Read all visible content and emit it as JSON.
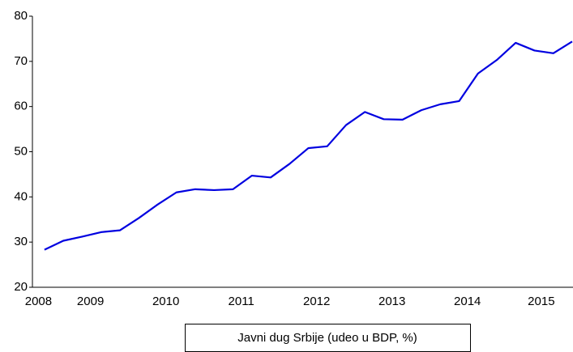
{
  "chart_data": {
    "type": "line",
    "x": [
      2008,
      2008.25,
      2008.5,
      2008.75,
      2009,
      2009.25,
      2009.5,
      2009.75,
      2010,
      2010.25,
      2010.5,
      2010.75,
      2011,
      2011.25,
      2011.5,
      2011.75,
      2012,
      2012.25,
      2012.5,
      2012.75,
      2013,
      2013.25,
      2013.5,
      2013.75,
      2014,
      2014.25,
      2014.5,
      2014.75,
      2015
    ],
    "series": [
      {
        "name": "Javni dug Srbije (udeo u BDP, %)",
        "color": "#0000e0",
        "values": [
          28.3,
          30.3,
          31.2,
          32.2,
          32.6,
          35.3,
          38.3,
          41.0,
          41.7,
          41.5,
          41.7,
          44.7,
          44.3,
          47.3,
          50.8,
          51.2,
          55.9,
          58.8,
          57.2,
          57.1,
          59.2,
          60.5,
          61.2,
          67.3,
          70.3,
          74.1,
          72.4,
          71.8,
          74.4
        ]
      }
    ],
    "xlim": [
      2007.84,
      2015
    ],
    "xticks": [
      {
        "value": 2007.92,
        "label": "2008"
      },
      {
        "value": 2008.61,
        "label": "2009"
      },
      {
        "value": 2009.61,
        "label": "2010"
      },
      {
        "value": 2010.61,
        "label": "2011"
      },
      {
        "value": 2011.61,
        "label": "2012"
      },
      {
        "value": 2012.61,
        "label": "2013"
      },
      {
        "value": 2013.61,
        "label": "2014"
      },
      {
        "value": 2014.59,
        "label": "2015"
      }
    ],
    "ylim": [
      20,
      80
    ],
    "yticks": [
      20,
      30,
      40,
      50,
      60,
      70,
      80
    ]
  }
}
